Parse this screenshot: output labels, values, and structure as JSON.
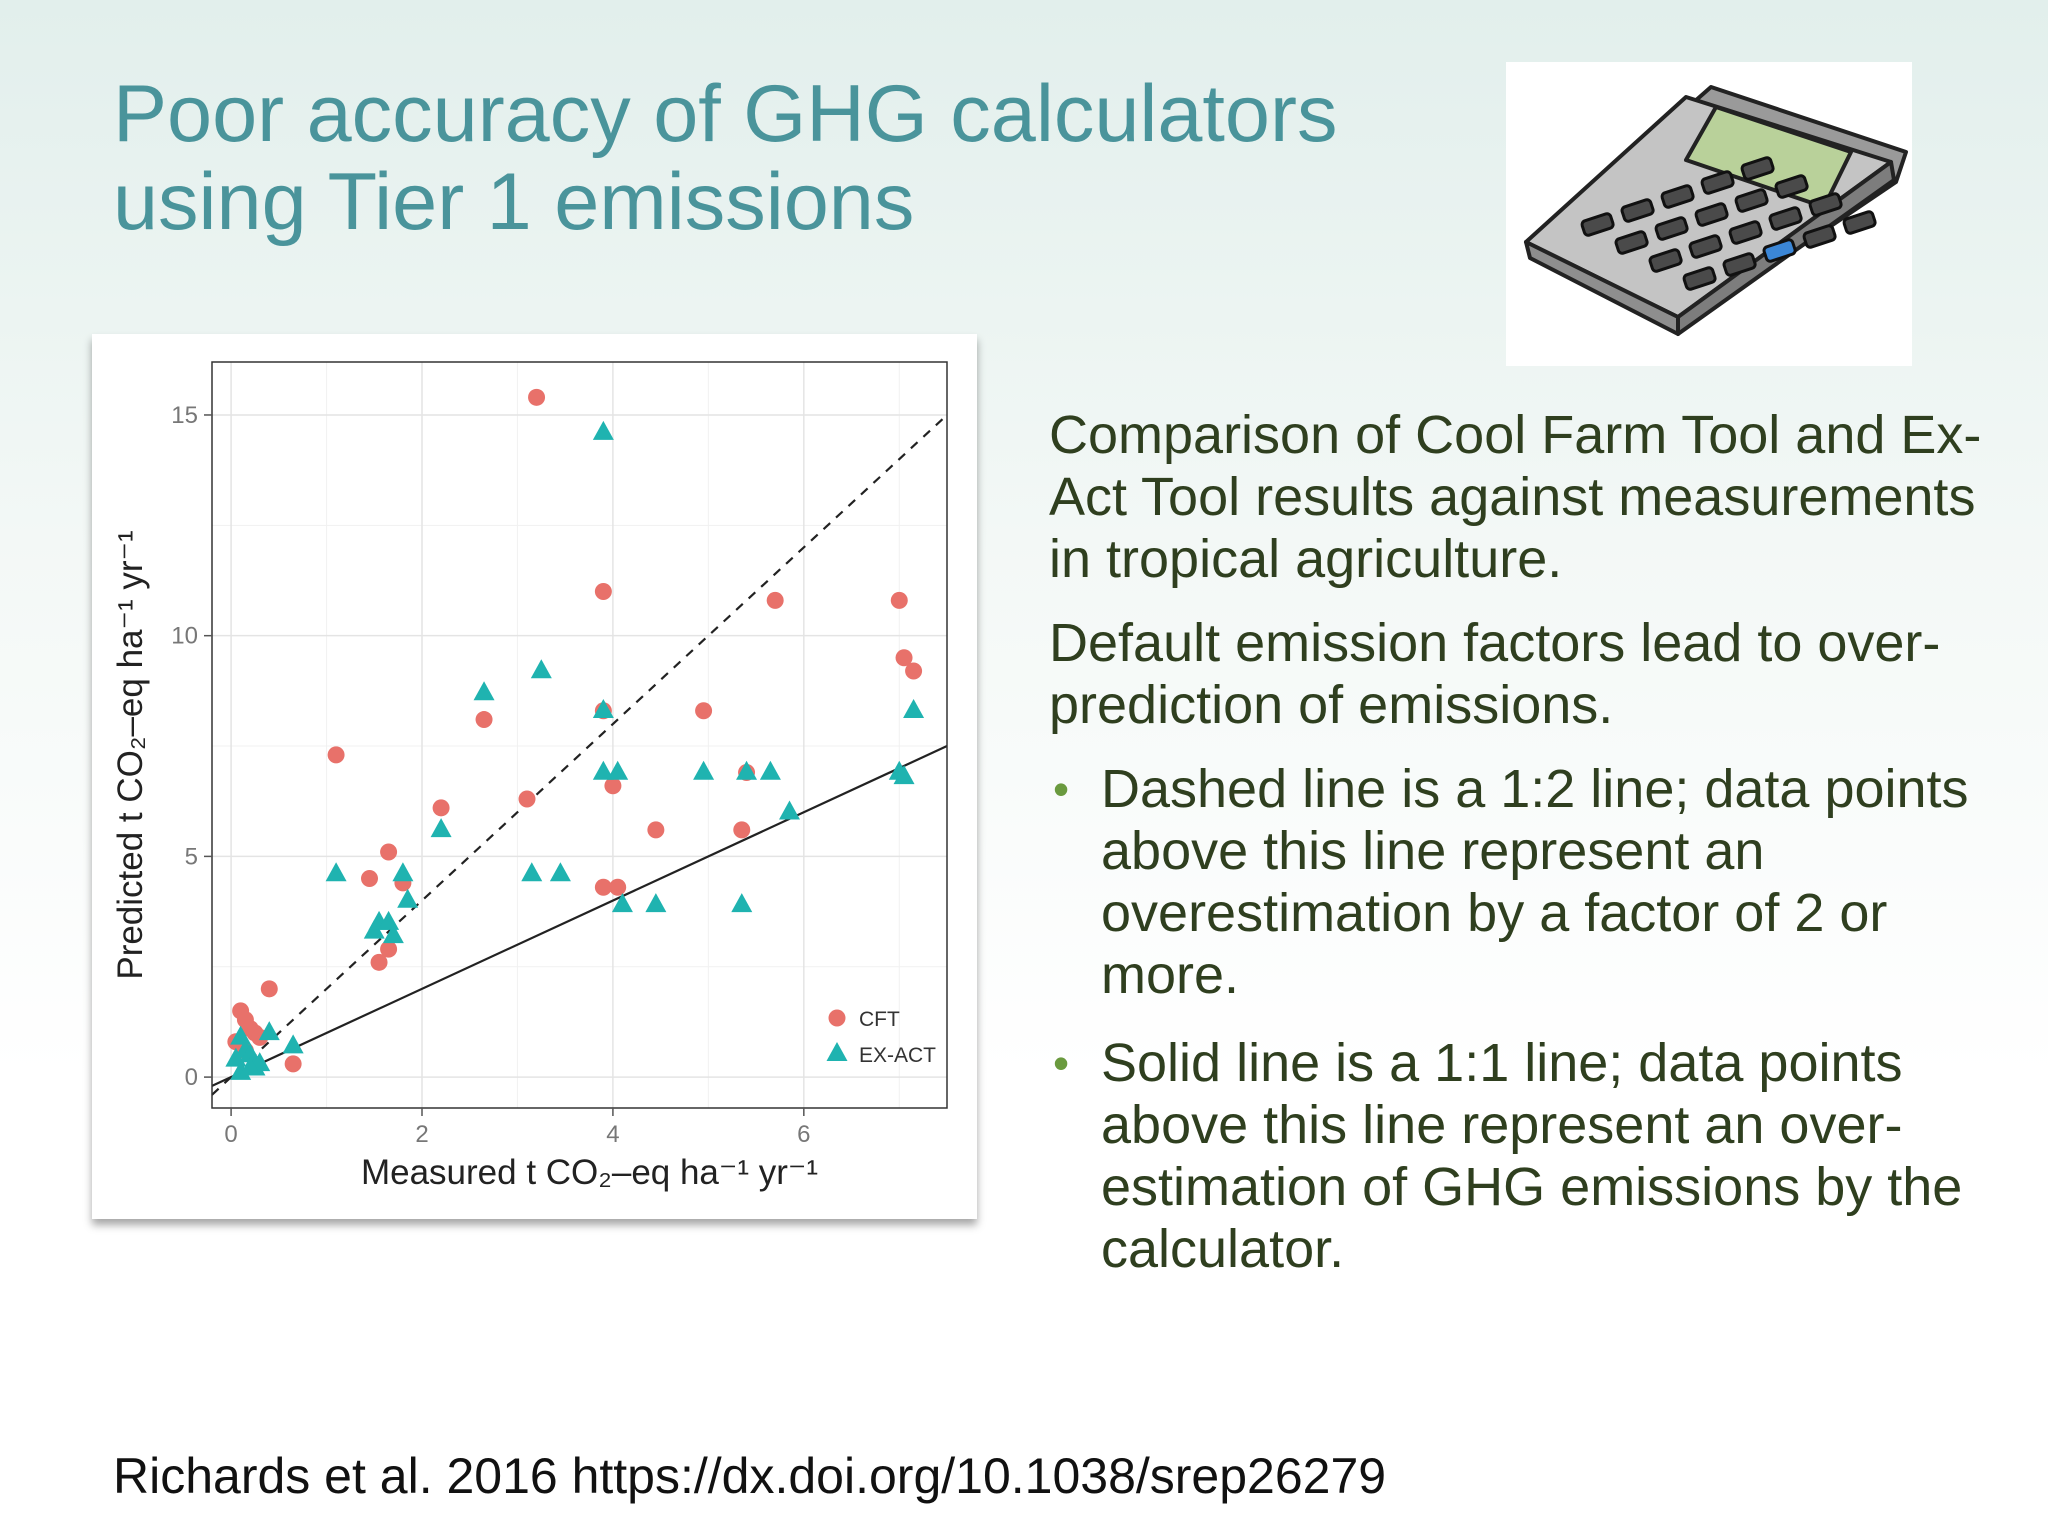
{
  "slide": {
    "title_line1": "Poor accuracy of GHG calculators",
    "title_line2": "using Tier 1 emissions",
    "intro": "Comparison of Cool Farm Tool and Ex-Act Tool results against measurements in tropical agriculture.",
    "statement": "Default emission factors lead to over-prediction of emissions.",
    "bullets": [
      "Dashed line is a 1:2 line; data points above this line represent an overestimation by a factor of 2 or more.",
      "Solid line is a 1:1 line; data points above this line represent an over-estimation of GHG emissions by the calculator."
    ],
    "citation": "Richards et al. 2016 https://dx.doi.org/10.1038/srep26279",
    "calculator_icon": "calculator-icon"
  },
  "chart_data": {
    "type": "scatter",
    "title": "",
    "xlabel": "Measured t CO₂–eq ha⁻¹ yr⁻¹",
    "ylabel": "Predicted t CO₂–eq ha⁻¹ yr⁻¹",
    "xlim": [
      -0.2,
      7.5
    ],
    "ylim": [
      -0.7,
      16.2
    ],
    "xticks": [
      0,
      2,
      4,
      6
    ],
    "yticks": [
      0,
      5,
      10,
      15
    ],
    "grid": true,
    "legend_position": "bottom-right",
    "reference_lines": [
      {
        "style": "dashed",
        "slope": 2,
        "intercept": 0
      },
      {
        "style": "solid",
        "slope": 1,
        "intercept": 0
      }
    ],
    "colors": {
      "CFT": "#e8716a",
      "EX-ACT": "#1fb3b0"
    },
    "series": [
      {
        "name": "CFT",
        "marker": "circle",
        "x": [
          3.2,
          3.9,
          5.7,
          7.0,
          7.05,
          7.15,
          1.1,
          2.65,
          3.9,
          4.95,
          2.2,
          3.1,
          1.65,
          1.45,
          1.8,
          1.55,
          1.65,
          4.45,
          5.35,
          5.4,
          3.9,
          4.05,
          4.0,
          0.4,
          0.1,
          0.15,
          0.2,
          0.25,
          0.3,
          0.05,
          0.65,
          0.15
        ],
        "y": [
          15.4,
          11.0,
          10.8,
          10.8,
          9.5,
          9.2,
          7.3,
          8.1,
          8.3,
          8.3,
          6.1,
          6.3,
          5.1,
          4.5,
          4.4,
          2.6,
          2.9,
          5.6,
          5.6,
          6.9,
          4.3,
          4.3,
          6.6,
          2.0,
          1.5,
          1.3,
          1.1,
          1.0,
          0.9,
          0.8,
          0.3,
          0.6
        ]
      },
      {
        "name": "EX-ACT",
        "marker": "triangle",
        "x": [
          3.9,
          3.25,
          2.65,
          3.9,
          7.15,
          3.9,
          4.05,
          4.95,
          5.4,
          5.65,
          7.0,
          7.05,
          2.2,
          1.1,
          1.8,
          1.85,
          3.15,
          3.45,
          4.1,
          4.45,
          5.35,
          5.85,
          1.5,
          1.55,
          1.65,
          1.7,
          0.4,
          0.65,
          0.1,
          0.15,
          0.2,
          0.05,
          0.25,
          0.3,
          0.1,
          0.2
        ],
        "y": [
          14.6,
          9.2,
          8.7,
          8.3,
          8.3,
          6.9,
          6.9,
          6.9,
          6.9,
          6.9,
          6.9,
          6.8,
          5.6,
          4.6,
          4.6,
          4.0,
          4.6,
          4.6,
          3.9,
          3.9,
          3.9,
          6.0,
          3.3,
          3.5,
          3.5,
          3.2,
          1.0,
          0.7,
          0.9,
          0.6,
          0.5,
          0.4,
          0.2,
          0.3,
          0.1,
          0.2
        ]
      }
    ]
  }
}
